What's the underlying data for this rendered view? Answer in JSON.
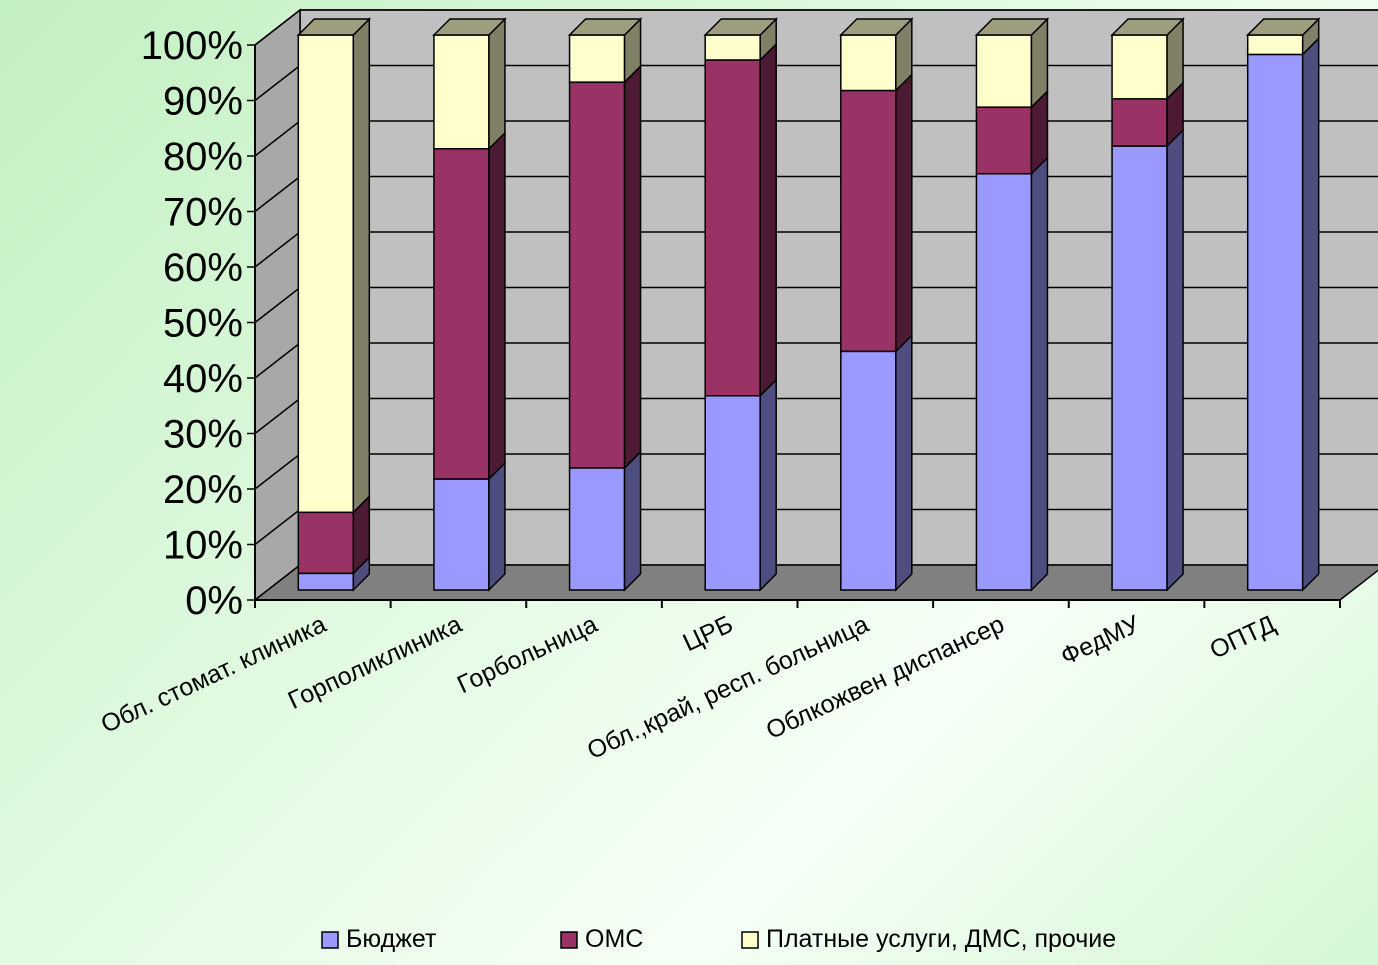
{
  "chart_data": {
    "type": "bar",
    "stacked": true,
    "percent_stacked": true,
    "three_d": true,
    "title": "",
    "xlabel": "",
    "ylabel": "",
    "ylim": [
      0,
      100
    ],
    "y_ticks": [
      "0%",
      "10%",
      "20%",
      "30%",
      "40%",
      "50%",
      "60%",
      "70%",
      "80%",
      "90%",
      "100%"
    ],
    "grid": true,
    "legend_position": "bottom",
    "categories": [
      "Обл. стомат. клиника",
      "Горполиклиника",
      "Горбольница",
      "ЦРБ",
      "Обл.,край, респ. больница",
      "Облкожвен диспансер",
      "ФедМУ",
      "ОПТД"
    ],
    "series": [
      {
        "name": "Бюджет",
        "color": "#9999ff",
        "values": [
          3,
          20,
          22,
          35,
          43,
          75,
          80,
          96.5
        ]
      },
      {
        "name": "ОМС",
        "color": "#993366",
        "values": [
          11,
          59.5,
          69.5,
          60.5,
          47,
          12,
          8.5,
          0
        ]
      },
      {
        "name": "Платные услуги, ДМС, прочие",
        "color": "#ffffcc",
        "values": [
          86,
          20.5,
          8.5,
          4.5,
          10,
          13,
          11.5,
          3.5
        ]
      }
    ]
  }
}
